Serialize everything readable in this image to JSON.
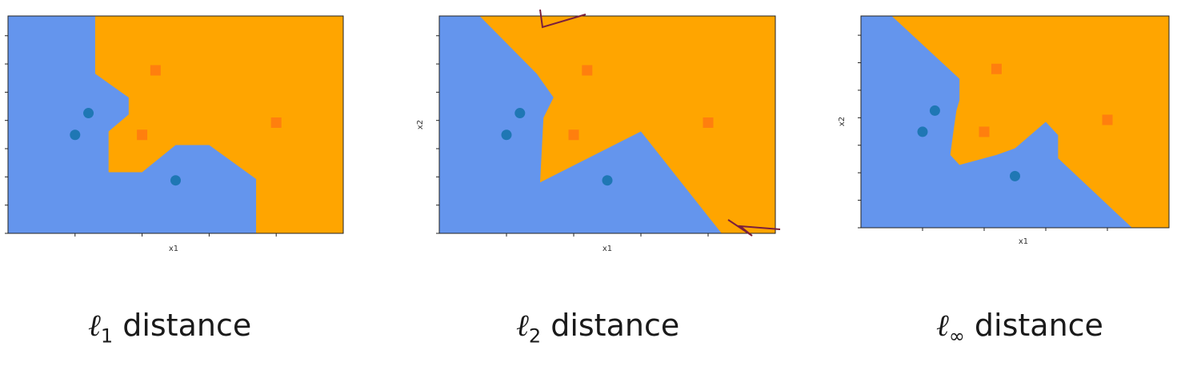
{
  "chart_data": [
    {
      "type": "scatter",
      "xlabel": "x1",
      "ylabel": "",
      "caption": {
        "symbol": "ℓ",
        "subscript": "1",
        "text": "distance"
      },
      "colors": {
        "class_circle_region": "#6495ED",
        "class_square_region": "#FFA500",
        "circle": "#1F77B4",
        "square": "#FF7F0E"
      },
      "xlim": [
        0,
        5
      ],
      "ylim": [
        0,
        3.2
      ],
      "series": [
        {
          "marker": "circle",
          "points": [
            [
              1.0,
              1.45
            ],
            [
              1.2,
              1.77
            ],
            [
              2.5,
              0.78
            ]
          ]
        },
        {
          "marker": "square",
          "points": [
            [
              2.2,
              2.4
            ],
            [
              2.0,
              1.45
            ],
            [
              4.0,
              1.63
            ]
          ]
        }
      ],
      "boundary": [
        [
          1.3,
          3.2
        ],
        [
          1.3,
          2.35
        ],
        [
          1.8,
          2.0
        ],
        [
          1.8,
          1.75
        ],
        [
          1.5,
          1.5
        ],
        [
          1.5,
          0.9
        ],
        [
          2.0,
          0.9
        ],
        [
          2.5,
          1.3
        ],
        [
          3.0,
          1.3
        ],
        [
          3.7,
          0.8
        ],
        [
          3.7,
          0
        ]
      ]
    },
    {
      "type": "scatter",
      "xlabel": "x1",
      "ylabel": "x2",
      "caption": {
        "symbol": "ℓ",
        "subscript": "2",
        "text": "distance"
      },
      "colors": {
        "class_circle_region": "#6495ED",
        "class_square_region": "#FFA500",
        "circle": "#1F77B4",
        "square": "#FF7F0E"
      },
      "xlim": [
        0,
        5
      ],
      "ylim": [
        0,
        3.2
      ],
      "series": [
        {
          "marker": "circle",
          "points": [
            [
              1.0,
              1.45
            ],
            [
              1.2,
              1.77
            ],
            [
              2.5,
              0.78
            ]
          ]
        },
        {
          "marker": "square",
          "points": [
            [
              2.2,
              2.4
            ],
            [
              2.0,
              1.45
            ],
            [
              4.0,
              1.63
            ]
          ]
        }
      ],
      "boundary": [
        [
          0.6,
          3.2
        ],
        [
          1.45,
          2.35
        ],
        [
          1.7,
          2.0
        ],
        [
          1.55,
          1.7
        ],
        [
          1.5,
          0.75
        ],
        [
          3.0,
          1.5
        ],
        [
          4.2,
          0
        ]
      ]
    },
    {
      "type": "scatter",
      "xlabel": "x1",
      "ylabel": "x2",
      "caption": {
        "symbol": "ℓ",
        "subscript": "∞",
        "text": "distance"
      },
      "colors": {
        "class_circle_region": "#6495ED",
        "class_square_region": "#FFA500",
        "circle": "#1F77B4",
        "square": "#FF7F0E"
      },
      "xlim": [
        0,
        5
      ],
      "ylim": [
        0,
        3.2
      ],
      "series": [
        {
          "marker": "circle",
          "points": [
            [
              1.0,
              1.45
            ],
            [
              1.2,
              1.77
            ],
            [
              2.5,
              0.78
            ]
          ]
        },
        {
          "marker": "square",
          "points": [
            [
              2.2,
              2.4
            ],
            [
              2.0,
              1.45
            ],
            [
              4.0,
              1.63
            ]
          ]
        }
      ],
      "boundary": [
        [
          0.5,
          3.2
        ],
        [
          1.6,
          2.25
        ],
        [
          1.6,
          1.93
        ],
        [
          1.55,
          1.77
        ],
        [
          1.5,
          1.45
        ],
        [
          1.45,
          1.1
        ],
        [
          1.6,
          0.95
        ],
        [
          2.2,
          1.1
        ],
        [
          2.5,
          1.2
        ],
        [
          3.0,
          1.6
        ],
        [
          3.2,
          1.4
        ],
        [
          3.2,
          1.05
        ],
        [
          4.4,
          0
        ]
      ]
    }
  ]
}
